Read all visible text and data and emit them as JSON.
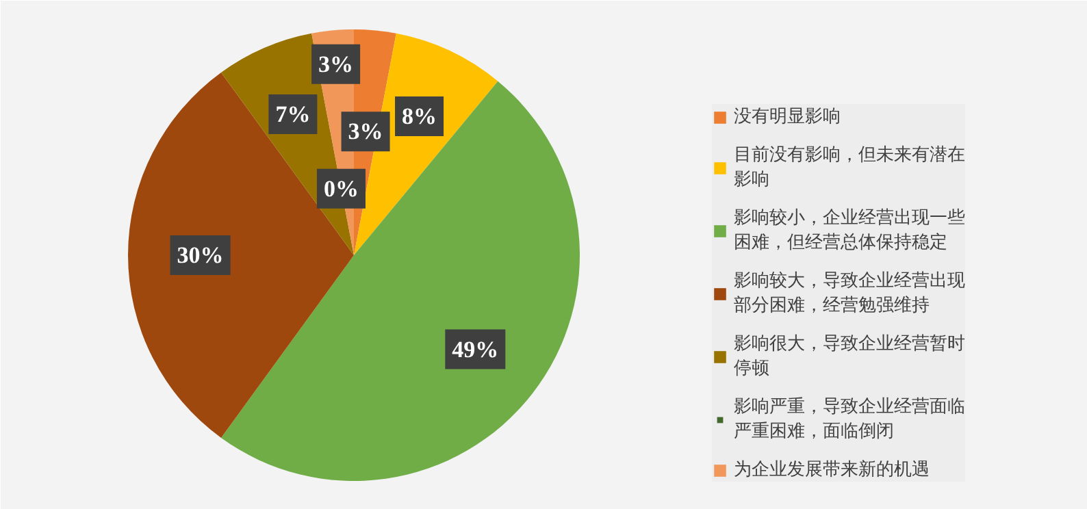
{
  "chart_data": {
    "type": "pie",
    "categories": [
      "没有明显影响",
      "目前没有影响，但未来有潜在影响",
      "影响较小，企业经营出现一些困难，但经营总体保持稳定",
      "影响较大，导致企业经营出现部分困难，经营勉强维持",
      "影响很大，导致企业经营暂时停顿",
      "影响严重，导致企业经营面临严重困难，面临倒闭",
      "为企业发展带来新的机遇"
    ],
    "values": [
      3,
      8,
      49,
      30,
      7,
      0,
      3
    ],
    "colors": [
      "#ed7d31",
      "#ffc000",
      "#70ad47",
      "#9e480e",
      "#997300",
      "#43682b",
      "#f1975a"
    ],
    "value_labels": [
      "3%",
      "8%",
      "49%",
      "30%",
      "7%",
      "0%",
      "3%"
    ],
    "legend": "right"
  }
}
